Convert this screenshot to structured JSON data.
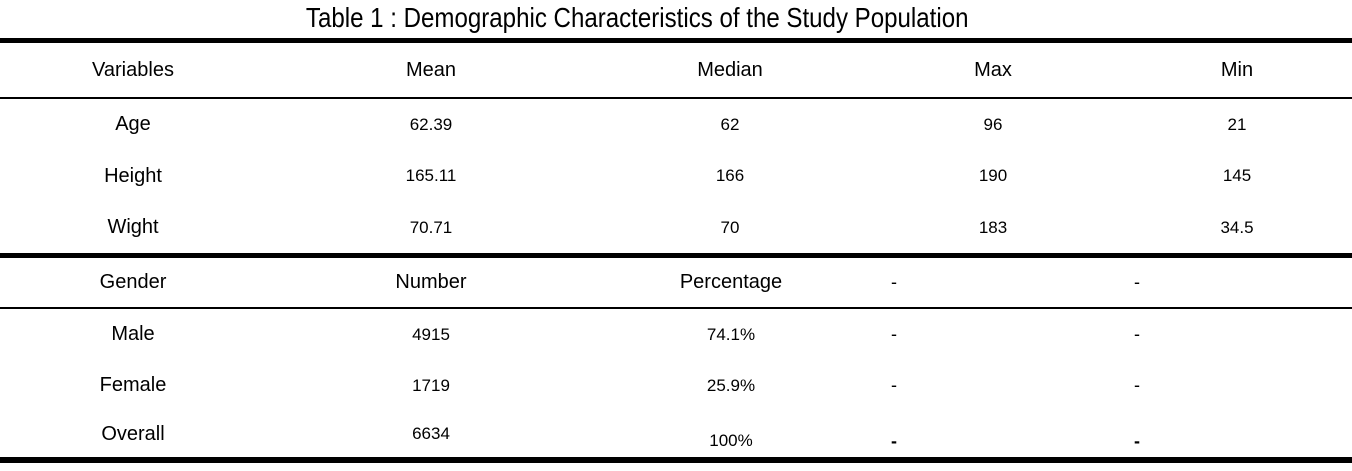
{
  "title": "Table 1 : Demographic Characteristics of the Study Population",
  "table": {
    "header": [
      "Variables",
      "Mean",
      "Median",
      "Max",
      "Min"
    ],
    "stats_rows": [
      [
        "Age",
        "62.39",
        "62",
        "96",
        "21"
      ],
      [
        "Height",
        "165.11",
        "166",
        "190",
        "145"
      ],
      [
        "Wight",
        "70.71",
        "70",
        "183",
        "34.5"
      ]
    ],
    "gender_header": [
      "Gender",
      "Number",
      "Percentage",
      "-",
      "-"
    ],
    "gender_rows": [
      [
        "Male",
        "4915",
        "74.1%",
        "-",
        "-"
      ],
      [
        "Female",
        "1719",
        "25.9%",
        "-",
        "-"
      ],
      [
        "Overall",
        "6634",
        "100%",
        "-",
        "-"
      ]
    ]
  },
  "colors": {
    "text": "#000000",
    "background": "#ffffff",
    "rule": "#000000"
  }
}
